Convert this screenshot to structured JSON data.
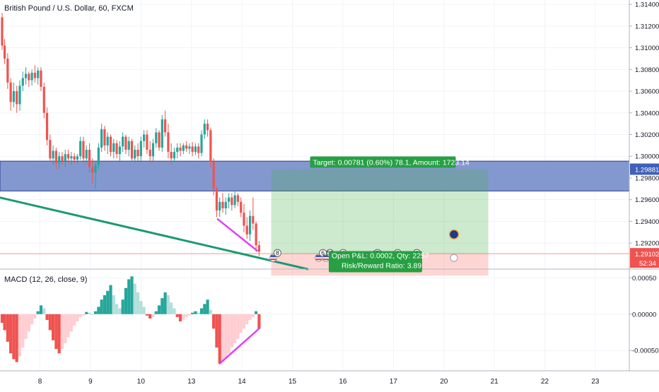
{
  "title": "British Pound / U.S. Dollar, 60, FXCM",
  "colors": {
    "up": "#26a69a",
    "down": "#ef5350",
    "hist_up_strong": "#26a69a",
    "hist_up_weak": "#b2dfdb",
    "hist_down_strong": "#ef5350",
    "hist_down_weak": "#ffcdd2",
    "zone": "#6f86c8",
    "trendline": "#1a9a72",
    "divergence": "#e040fb",
    "target_label": "#26a042",
    "price_badge": "#ef5350",
    "zone_badge": "#3f5fb8",
    "grid": "#f0f3fa"
  },
  "x_axis": {
    "ticks": [
      {
        "label": "8",
        "x": 8
      },
      {
        "label": "9",
        "x": 9
      },
      {
        "label": "10",
        "x": 10
      },
      {
        "label": "13",
        "x": 11
      },
      {
        "label": "14",
        "x": 12
      },
      {
        "label": "15",
        "x": 13
      },
      {
        "label": "16",
        "x": 14
      },
      {
        "label": "17",
        "x": 15
      },
      {
        "label": "20",
        "x": 16
      },
      {
        "label": "21",
        "x": 17
      },
      {
        "label": "22",
        "x": 18
      },
      {
        "label": "23",
        "x": 19
      }
    ]
  },
  "price_axis": {
    "ylim": [
      1.2896,
      1.3144
    ],
    "tick_labels": [
      "1.31400",
      "1.31200",
      "1.31000",
      "1.30800",
      "1.30600",
      "1.30400",
      "1.30200",
      "1.30000",
      "1.29800",
      "1.29600",
      "1.29400",
      "1.29200"
    ],
    "tick_values": [
      1.314,
      1.312,
      1.31,
      1.308,
      1.306,
      1.304,
      1.302,
      1.3,
      1.298,
      1.296,
      1.294,
      1.292
    ],
    "current_price_label": "1.29102",
    "current_price": 1.29102,
    "countdown_label": "52:34",
    "zone_price_label": "1.29881",
    "zone_price": 1.29881
  },
  "zone": {
    "top": 1.29955,
    "bottom": 1.2968
  },
  "position": {
    "target_text": "Target: 0.00781 (0.60%) 78.1, Amount: 1723.14",
    "open_pl_text": "Open P&L: 0.0002, Qty: 2257",
    "risk_reward_text": "Risk/Reward Ratio: 3.89",
    "x_start": 12.58,
    "x_end": 16.88,
    "entry": 1.291,
    "target": 1.29881,
    "stop": 1.289
  },
  "candles": [
    {
      "x": 7.25,
      "o": 1.3128,
      "h": 1.3132,
      "l": 1.3098,
      "c": 1.3102
    },
    {
      "x": 7.3,
      "o": 1.3102,
      "h": 1.3108,
      "l": 1.3085,
      "c": 1.309
    },
    {
      "x": 7.36,
      "o": 1.309,
      "h": 1.3095,
      "l": 1.3062,
      "c": 1.3068
    },
    {
      "x": 7.42,
      "o": 1.3068,
      "h": 1.3072,
      "l": 1.3042,
      "c": 1.305
    },
    {
      "x": 7.48,
      "o": 1.305,
      "h": 1.3068,
      "l": 1.3045,
      "c": 1.306
    },
    {
      "x": 7.54,
      "o": 1.306,
      "h": 1.3065,
      "l": 1.304,
      "c": 1.3048
    },
    {
      "x": 7.6,
      "o": 1.3048,
      "h": 1.307,
      "l": 1.3042,
      "c": 1.3065
    },
    {
      "x": 7.66,
      "o": 1.3065,
      "h": 1.3078,
      "l": 1.306,
      "c": 1.3072
    },
    {
      "x": 7.72,
      "o": 1.3072,
      "h": 1.3082,
      "l": 1.3066,
      "c": 1.3076
    },
    {
      "x": 7.78,
      "o": 1.3076,
      "h": 1.3078,
      "l": 1.3064,
      "c": 1.307
    },
    {
      "x": 7.84,
      "o": 1.307,
      "h": 1.308,
      "l": 1.3065,
      "c": 1.3077
    },
    {
      "x": 7.9,
      "o": 1.3077,
      "h": 1.3084,
      "l": 1.3068,
      "c": 1.3072
    },
    {
      "x": 7.96,
      "o": 1.3072,
      "h": 1.3082,
      "l": 1.3066,
      "c": 1.3079
    },
    {
      "x": 8.02,
      "o": 1.3079,
      "h": 1.3082,
      "l": 1.306,
      "c": 1.3064
    },
    {
      "x": 8.08,
      "o": 1.3064,
      "h": 1.3068,
      "l": 1.3035,
      "c": 1.304
    },
    {
      "x": 8.14,
      "o": 1.304,
      "h": 1.3045,
      "l": 1.301,
      "c": 1.3015
    },
    {
      "x": 8.2,
      "o": 1.3015,
      "h": 1.302,
      "l": 1.2995,
      "c": 1.2998
    },
    {
      "x": 8.26,
      "o": 1.2998,
      "h": 1.301,
      "l": 1.2992,
      "c": 1.3005
    },
    {
      "x": 8.32,
      "o": 1.3005,
      "h": 1.3008,
      "l": 1.2988,
      "c": 1.2994
    },
    {
      "x": 8.38,
      "o": 1.2994,
      "h": 1.3004,
      "l": 1.2988,
      "c": 1.3
    },
    {
      "x": 8.44,
      "o": 1.3,
      "h": 1.3004,
      "l": 1.2992,
      "c": 1.2996
    },
    {
      "x": 8.5,
      "o": 1.2996,
      "h": 1.3006,
      "l": 1.299,
      "c": 1.3002
    },
    {
      "x": 8.56,
      "o": 1.3002,
      "h": 1.3006,
      "l": 1.2994,
      "c": 1.2998
    },
    {
      "x": 8.62,
      "o": 1.2998,
      "h": 1.3004,
      "l": 1.2992,
      "c": 1.3
    },
    {
      "x": 8.68,
      "o": 1.3,
      "h": 1.3003,
      "l": 1.2994,
      "c": 1.2997
    },
    {
      "x": 8.74,
      "o": 1.2997,
      "h": 1.3002,
      "l": 1.2993,
      "c": 1.3
    },
    {
      "x": 8.8,
      "o": 1.3,
      "h": 1.3018,
      "l": 1.2997,
      "c": 1.3014
    },
    {
      "x": 8.86,
      "o": 1.3014,
      "h": 1.3018,
      "l": 1.2994,
      "c": 1.2998
    },
    {
      "x": 8.92,
      "o": 1.2998,
      "h": 1.301,
      "l": 1.2994,
      "c": 1.3006
    },
    {
      "x": 8.98,
      "o": 1.3006,
      "h": 1.3012,
      "l": 1.2985,
      "c": 1.299
    },
    {
      "x": 9.04,
      "o": 1.299,
      "h": 1.2998,
      "l": 1.2975,
      "c": 1.2985
    },
    {
      "x": 9.1,
      "o": 1.2985,
      "h": 1.2996,
      "l": 1.297,
      "c": 1.2992
    },
    {
      "x": 9.16,
      "o": 1.2992,
      "h": 1.3012,
      "l": 1.2988,
      "c": 1.3008
    },
    {
      "x": 9.22,
      "o": 1.3008,
      "h": 1.303,
      "l": 1.3004,
      "c": 1.3025
    },
    {
      "x": 9.28,
      "o": 1.3025,
      "h": 1.3028,
      "l": 1.3005,
      "c": 1.301
    },
    {
      "x": 9.34,
      "o": 1.301,
      "h": 1.3022,
      "l": 1.3002,
      "c": 1.3018
    },
    {
      "x": 9.4,
      "o": 1.3018,
      "h": 1.302,
      "l": 1.3,
      "c": 1.3004
    },
    {
      "x": 9.46,
      "o": 1.3004,
      "h": 1.3016,
      "l": 1.2998,
      "c": 1.3012
    },
    {
      "x": 9.52,
      "o": 1.3012,
      "h": 1.3015,
      "l": 1.2998,
      "c": 1.3002
    },
    {
      "x": 9.58,
      "o": 1.3002,
      "h": 1.3014,
      "l": 1.2996,
      "c": 1.3009
    },
    {
      "x": 9.64,
      "o": 1.3009,
      "h": 1.3022,
      "l": 1.3004,
      "c": 1.3018
    },
    {
      "x": 9.7,
      "o": 1.3018,
      "h": 1.302,
      "l": 1.3002,
      "c": 1.3006
    },
    {
      "x": 9.76,
      "o": 1.3006,
      "h": 1.3018,
      "l": 1.3,
      "c": 1.3014
    },
    {
      "x": 9.82,
      "o": 1.3014,
      "h": 1.3016,
      "l": 1.2995,
      "c": 1.2998
    },
    {
      "x": 9.88,
      "o": 1.2998,
      "h": 1.301,
      "l": 1.2994,
      "c": 1.3006
    },
    {
      "x": 9.94,
      "o": 1.3006,
      "h": 1.3012,
      "l": 1.2996,
      "c": 1.3
    },
    {
      "x": 10.0,
      "o": 1.3,
      "h": 1.3018,
      "l": 1.2996,
      "c": 1.3014
    },
    {
      "x": 10.06,
      "o": 1.3014,
      "h": 1.3024,
      "l": 1.3008,
      "c": 1.302
    },
    {
      "x": 10.12,
      "o": 1.302,
      "h": 1.3024,
      "l": 1.3002,
      "c": 1.3006
    },
    {
      "x": 10.18,
      "o": 1.3006,
      "h": 1.3014,
      "l": 1.2994,
      "c": 1.3
    },
    {
      "x": 10.24,
      "o": 1.3,
      "h": 1.3016,
      "l": 1.2996,
      "c": 1.3012
    },
    {
      "x": 10.3,
      "o": 1.3012,
      "h": 1.3026,
      "l": 1.3008,
      "c": 1.3022
    },
    {
      "x": 10.36,
      "o": 1.3022,
      "h": 1.3024,
      "l": 1.3005,
      "c": 1.3008
    },
    {
      "x": 10.42,
      "o": 1.3008,
      "h": 1.3038,
      "l": 1.3004,
      "c": 1.3034
    },
    {
      "x": 10.48,
      "o": 1.3034,
      "h": 1.3042,
      "l": 1.3018,
      "c": 1.3022
    },
    {
      "x": 10.54,
      "o": 1.3022,
      "h": 1.303,
      "l": 1.2998,
      "c": 1.3004
    },
    {
      "x": 10.6,
      "o": 1.3004,
      "h": 1.3012,
      "l": 1.2992,
      "c": 1.2998
    },
    {
      "x": 10.66,
      "o": 1.2998,
      "h": 1.3008,
      "l": 1.2994,
      "c": 1.3004
    },
    {
      "x": 10.72,
      "o": 1.3004,
      "h": 1.3012,
      "l": 1.2998,
      "c": 1.3008
    },
    {
      "x": 10.78,
      "o": 1.3008,
      "h": 1.3012,
      "l": 1.3,
      "c": 1.3005
    },
    {
      "x": 10.84,
      "o": 1.3005,
      "h": 1.3012,
      "l": 1.3002,
      "c": 1.301
    },
    {
      "x": 10.9,
      "o": 1.301,
      "h": 1.3014,
      "l": 1.3004,
      "c": 1.3007
    },
    {
      "x": 10.96,
      "o": 1.3007,
      "h": 1.3012,
      "l": 1.3002,
      "c": 1.3009
    },
    {
      "x": 11.02,
      "o": 1.3009,
      "h": 1.3013,
      "l": 1.3,
      "c": 1.3004
    },
    {
      "x": 11.08,
      "o": 1.3004,
      "h": 1.3012,
      "l": 1.3001,
      "c": 1.3009
    },
    {
      "x": 11.14,
      "o": 1.3009,
      "h": 1.3012,
      "l": 1.2998,
      "c": 1.3003
    },
    {
      "x": 11.2,
      "o": 1.3003,
      "h": 1.3024,
      "l": 1.3,
      "c": 1.302
    },
    {
      "x": 11.26,
      "o": 1.302,
      "h": 1.3034,
      "l": 1.3016,
      "c": 1.303
    },
    {
      "x": 11.32,
      "o": 1.303,
      "h": 1.3034,
      "l": 1.3018,
      "c": 1.3024
    },
    {
      "x": 11.38,
      "o": 1.3024,
      "h": 1.3026,
      "l": 1.299,
      "c": 1.2995
    },
    {
      "x": 11.44,
      "o": 1.2995,
      "h": 1.2998,
      "l": 1.2964,
      "c": 1.297
    },
    {
      "x": 11.5,
      "o": 1.297,
      "h": 1.2972,
      "l": 1.2944,
      "c": 1.295
    },
    {
      "x": 11.56,
      "o": 1.295,
      "h": 1.2962,
      "l": 1.2944,
      "c": 1.2958
    },
    {
      "x": 11.62,
      "o": 1.2958,
      "h": 1.2966,
      "l": 1.2948,
      "c": 1.2952
    },
    {
      "x": 11.68,
      "o": 1.2952,
      "h": 1.2962,
      "l": 1.2946,
      "c": 1.2958
    },
    {
      "x": 11.74,
      "o": 1.2958,
      "h": 1.2966,
      "l": 1.2952,
      "c": 1.2962
    },
    {
      "x": 11.8,
      "o": 1.2962,
      "h": 1.2966,
      "l": 1.295,
      "c": 1.2955
    },
    {
      "x": 11.86,
      "o": 1.2955,
      "h": 1.2968,
      "l": 1.2952,
      "c": 1.2964
    },
    {
      "x": 11.92,
      "o": 1.2964,
      "h": 1.2966,
      "l": 1.2954,
      "c": 1.2958
    },
    {
      "x": 11.98,
      "o": 1.2958,
      "h": 1.2962,
      "l": 1.2944,
      "c": 1.2948
    },
    {
      "x": 12.04,
      "o": 1.2948,
      "h": 1.2956,
      "l": 1.293,
      "c": 1.2936
    },
    {
      "x": 12.1,
      "o": 1.2936,
      "h": 1.2944,
      "l": 1.2924,
      "c": 1.2928
    },
    {
      "x": 12.16,
      "o": 1.2928,
      "h": 1.295,
      "l": 1.2922,
      "c": 1.2945
    },
    {
      "x": 12.22,
      "o": 1.2945,
      "h": 1.2962,
      "l": 1.2932,
      "c": 1.2938
    },
    {
      "x": 12.28,
      "o": 1.2938,
      "h": 1.294,
      "l": 1.2912,
      "c": 1.2918
    },
    {
      "x": 12.34,
      "o": 1.2918,
      "h": 1.2922,
      "l": 1.2908,
      "c": 1.2912
    }
  ],
  "trendline": {
    "x1": 7.2,
    "y1": 1.2962,
    "x2": 13.3,
    "y2": 1.2896
  },
  "divergence_price": {
    "x1": 11.52,
    "y1": 1.2942,
    "x2": 12.3,
    "y2": 1.2913
  },
  "macd_panel": {
    "title": "MACD (12, 26, close, 9)",
    "ylim": [
      -0.00078,
      0.00062
    ],
    "tick_labels": [
      "0.00050",
      "0.00000",
      "-0.00050"
    ],
    "tick_values": [
      0.0005,
      0.0,
      -0.0005
    ],
    "histogram": [
      {
        "x": 7.25,
        "v": -0.00012
      },
      {
        "x": 7.3,
        "v": -0.00022
      },
      {
        "x": 7.36,
        "v": -0.00038
      },
      {
        "x": 7.42,
        "v": -0.00054
      },
      {
        "x": 7.48,
        "v": -0.00062
      },
      {
        "x": 7.54,
        "v": -0.00066
      },
      {
        "x": 7.6,
        "v": -0.00058
      },
      {
        "x": 7.66,
        "v": -0.00046
      },
      {
        "x": 7.72,
        "v": -0.00034
      },
      {
        "x": 7.78,
        "v": -0.00024
      },
      {
        "x": 7.84,
        "v": -0.00014
      },
      {
        "x": 7.9,
        "v": -6e-05
      },
      {
        "x": 7.96,
        "v": 4e-05
      },
      {
        "x": 8.02,
        "v": 0.00012
      },
      {
        "x": 8.08,
        "v": 8e-05
      },
      {
        "x": 8.14,
        "v": -8e-05
      },
      {
        "x": 8.2,
        "v": -0.00022
      },
      {
        "x": 8.26,
        "v": -0.00036
      },
      {
        "x": 8.32,
        "v": -0.00048
      },
      {
        "x": 8.38,
        "v": -0.00054
      },
      {
        "x": 8.44,
        "v": -0.00048
      },
      {
        "x": 8.5,
        "v": -0.0004
      },
      {
        "x": 8.56,
        "v": -0.00032
      },
      {
        "x": 8.62,
        "v": -0.00024
      },
      {
        "x": 8.68,
        "v": -0.00016
      },
      {
        "x": 8.74,
        "v": -0.0001
      },
      {
        "x": 8.8,
        "v": -4e-05
      },
      {
        "x": 8.86,
        "v": -2e-05
      },
      {
        "x": 8.92,
        "v": 3e-05
      },
      {
        "x": 8.98,
        "v": 2e-05
      },
      {
        "x": 9.04,
        "v": 0.0
      },
      {
        "x": 9.1,
        "v": 4e-05
      },
      {
        "x": 9.16,
        "v": 0.0001
      },
      {
        "x": 9.22,
        "v": 0.0002
      },
      {
        "x": 9.28,
        "v": 0.00026
      },
      {
        "x": 9.34,
        "v": 0.00032
      },
      {
        "x": 9.4,
        "v": 0.0004
      },
      {
        "x": 9.46,
        "v": 0.00026
      },
      {
        "x": 9.52,
        "v": 0.00014
      },
      {
        "x": 9.58,
        "v": 8e-05
      },
      {
        "x": 9.64,
        "v": 0.0002
      },
      {
        "x": 9.7,
        "v": 0.00036
      },
      {
        "x": 9.76,
        "v": 0.00048
      },
      {
        "x": 9.82,
        "v": 0.00052
      },
      {
        "x": 9.88,
        "v": 0.00042
      },
      {
        "x": 9.94,
        "v": 0.0003
      },
      {
        "x": 10.0,
        "v": 0.00018
      },
      {
        "x": 10.06,
        "v": 0.0001
      },
      {
        "x": 10.12,
        "v": -2e-05
      },
      {
        "x": 10.18,
        "v": -6e-05
      },
      {
        "x": 10.24,
        "v": -4e-05
      },
      {
        "x": 10.3,
        "v": 4e-05
      },
      {
        "x": 10.36,
        "v": 0.00012
      },
      {
        "x": 10.42,
        "v": 0.00022
      },
      {
        "x": 10.48,
        "v": 0.0003
      },
      {
        "x": 10.54,
        "v": 0.00026
      },
      {
        "x": 10.6,
        "v": 0.00016
      },
      {
        "x": 10.66,
        "v": 8e-05
      },
      {
        "x": 10.72,
        "v": -4e-05
      },
      {
        "x": 10.78,
        "v": -0.0001
      },
      {
        "x": 10.84,
        "v": -8e-05
      },
      {
        "x": 10.9,
        "v": -4e-05
      },
      {
        "x": 10.96,
        "v": -2e-05
      },
      {
        "x": 11.02,
        "v": 2e-05
      },
      {
        "x": 11.08,
        "v": 4e-05
      },
      {
        "x": 11.14,
        "v": 2e-05
      },
      {
        "x": 11.2,
        "v": 8e-05
      },
      {
        "x": 11.26,
        "v": 0.00014
      },
      {
        "x": 11.32,
        "v": 0.0002
      },
      {
        "x": 11.38,
        "v": 6e-05
      },
      {
        "x": 11.44,
        "v": -0.0002
      },
      {
        "x": 11.5,
        "v": -0.00046
      },
      {
        "x": 11.56,
        "v": -0.00068
      },
      {
        "x": 11.62,
        "v": -0.00066
      },
      {
        "x": 11.68,
        "v": -0.0006
      },
      {
        "x": 11.74,
        "v": -0.00054
      },
      {
        "x": 11.8,
        "v": -0.00046
      },
      {
        "x": 11.86,
        "v": -0.0004
      },
      {
        "x": 11.92,
        "v": -0.00034
      },
      {
        "x": 11.98,
        "v": -0.00026
      },
      {
        "x": 12.04,
        "v": -0.0002
      },
      {
        "x": 12.1,
        "v": -0.00014
      },
      {
        "x": 12.16,
        "v": -8e-05
      },
      {
        "x": 12.22,
        "v": -4e-05
      },
      {
        "x": 12.28,
        "v": 4e-05
      },
      {
        "x": 12.34,
        "v": -0.0002
      }
    ],
    "divergence": {
      "x1": 11.56,
      "y1": -0.00068,
      "x2": 12.34,
      "y2": -0.0002
    }
  },
  "events": [
    {
      "x": 12.62,
      "label": "8"
    },
    {
      "x": 13.52,
      "label": "6"
    },
    {
      "x": 13.66,
      "label": "52"
    },
    {
      "x": 13.92,
      "label": "4"
    },
    {
      "x": 14.6,
      "label": "372"
    },
    {
      "x": 15.0,
      "label": "2"
    },
    {
      "x": 15.38,
      "label": "6"
    }
  ]
}
